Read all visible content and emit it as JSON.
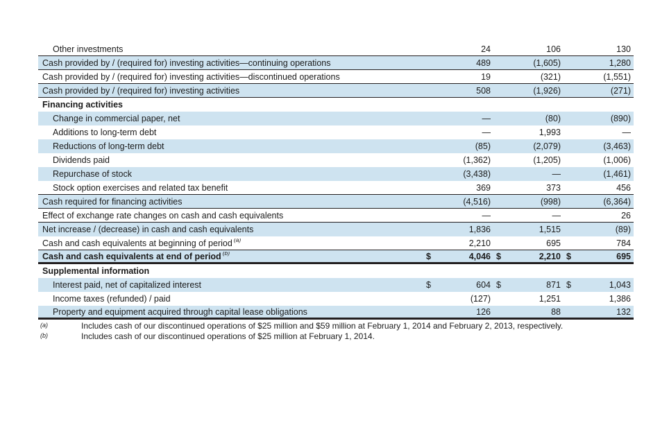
{
  "colors": {
    "row_highlight": "#cee3f0",
    "rule": "#231f20",
    "text": "#1a1a1a",
    "background": "#ffffff"
  },
  "table": {
    "columns": [
      "fy2014",
      "fy2013",
      "fy2012"
    ],
    "rows": [
      {
        "label": "Other investments",
        "indent": true,
        "blue": false,
        "bold": false,
        "rule": "thin",
        "dollar": false,
        "values": [
          "24",
          "106",
          "130"
        ]
      },
      {
        "label": "Cash provided by / (required for) investing activities—continuing operations",
        "indent": false,
        "blue": true,
        "bold": false,
        "rule": "thin",
        "dollar": false,
        "values": [
          "489",
          "(1,605)",
          "1,280"
        ]
      },
      {
        "label": "Cash provided by / (required for) investing activities—discontinued operations",
        "indent": false,
        "blue": false,
        "bold": false,
        "rule": "thin",
        "dollar": false,
        "values": [
          "19",
          "(321)",
          "(1,551)"
        ]
      },
      {
        "label": "Cash provided by / (required for) investing activities",
        "indent": false,
        "blue": true,
        "bold": false,
        "rule": "thin",
        "dollar": false,
        "values": [
          "508",
          "(1,926)",
          "(271)"
        ]
      },
      {
        "label": "Financing activities",
        "indent": false,
        "blue": false,
        "bold": true,
        "rule": "none",
        "dollar": false,
        "values": [
          "",
          "",
          ""
        ]
      },
      {
        "label": "Change in commercial paper, net",
        "indent": true,
        "blue": true,
        "bold": false,
        "rule": "none",
        "dollar": false,
        "values": [
          "—",
          "(80)",
          "(890)"
        ]
      },
      {
        "label": "Additions to long-term debt",
        "indent": true,
        "blue": false,
        "bold": false,
        "rule": "none",
        "dollar": false,
        "values": [
          "—",
          "1,993",
          "—"
        ]
      },
      {
        "label": "Reductions of long-term debt",
        "indent": true,
        "blue": true,
        "bold": false,
        "rule": "none",
        "dollar": false,
        "values": [
          "(85)",
          "(2,079)",
          "(3,463)"
        ]
      },
      {
        "label": "Dividends paid",
        "indent": true,
        "blue": false,
        "bold": false,
        "rule": "none",
        "dollar": false,
        "values": [
          "(1,362)",
          "(1,205)",
          "(1,006)"
        ]
      },
      {
        "label": "Repurchase of stock",
        "indent": true,
        "blue": true,
        "bold": false,
        "rule": "none",
        "dollar": false,
        "values": [
          "(3,438)",
          "—",
          "(1,461)"
        ]
      },
      {
        "label": "Stock option exercises and related tax benefit",
        "indent": true,
        "blue": false,
        "bold": false,
        "rule": "thin",
        "dollar": false,
        "values": [
          "369",
          "373",
          "456"
        ]
      },
      {
        "label": "Cash required for financing activities",
        "indent": false,
        "blue": true,
        "bold": false,
        "rule": "thin",
        "dollar": false,
        "values": [
          "(4,516)",
          "(998)",
          "(6,364)"
        ]
      },
      {
        "label": "Effect of exchange rate changes on cash and cash equivalents",
        "indent": false,
        "blue": false,
        "bold": false,
        "rule": "thin",
        "dollar": false,
        "values": [
          "—",
          "—",
          "26"
        ]
      },
      {
        "label": "Net increase / (decrease) in cash and cash equivalents",
        "indent": false,
        "blue": true,
        "bold": false,
        "rule": "none",
        "dollar": false,
        "values": [
          "1,836",
          "1,515",
          "(89)"
        ]
      },
      {
        "label": "Cash and cash equivalents at beginning of period",
        "sup": "(a)",
        "indent": false,
        "blue": false,
        "bold": false,
        "rule": "thin",
        "dollar": false,
        "values": [
          "2,210",
          "695",
          "784"
        ]
      },
      {
        "label": "Cash and cash equivalents at end of period",
        "sup": "(b)",
        "indent": false,
        "blue": true,
        "bold": true,
        "rule": "thick",
        "dollar": true,
        "values": [
          "4,046",
          "2,210",
          "695"
        ]
      },
      {
        "label": "Supplemental information",
        "indent": false,
        "blue": false,
        "bold": true,
        "rule": "none",
        "dollar": false,
        "values": [
          "",
          "",
          ""
        ]
      },
      {
        "label": "Interest paid, net of capitalized interest",
        "indent": true,
        "blue": true,
        "bold": false,
        "rule": "none",
        "dollar": true,
        "values": [
          "604",
          "871",
          "1,043"
        ]
      },
      {
        "label": "Income taxes (refunded) / paid",
        "indent": true,
        "blue": false,
        "bold": false,
        "rule": "none",
        "dollar": false,
        "values": [
          "(127)",
          "1,251",
          "1,386"
        ]
      },
      {
        "label": "Property and equipment acquired through capital lease obligations",
        "indent": true,
        "blue": true,
        "bold": false,
        "rule": "thick",
        "dollar": false,
        "values": [
          "126",
          "88",
          "132"
        ]
      }
    ],
    "dollar_sign": "$"
  },
  "footnotes": [
    {
      "marker": "(a)",
      "text": "Includes cash of our discontinued operations of $25 million and $59 million at February 1, 2014 and February 2, 2013, respectively."
    },
    {
      "marker": "(b)",
      "text": "Includes cash of our discontinued operations of $25 million at February 1, 2014."
    }
  ]
}
